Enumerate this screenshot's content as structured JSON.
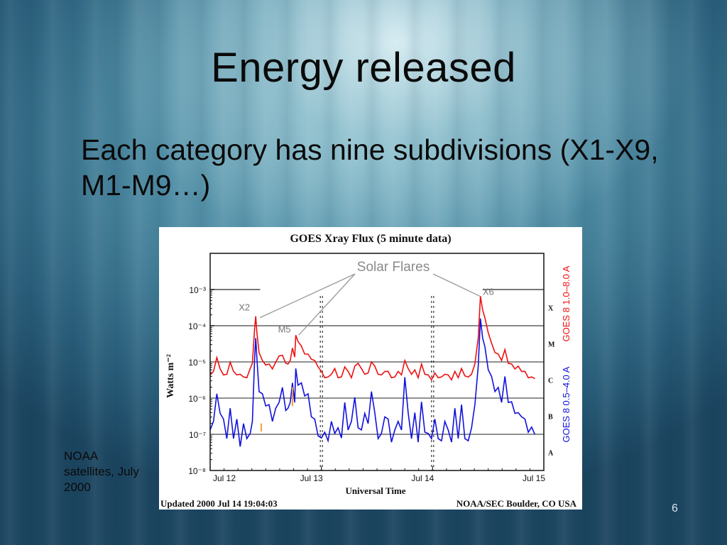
{
  "slide": {
    "title": "Energy released",
    "bullet": "Each category has nine subdivisions (X1-X9, M1-M9…)",
    "caption": "NOAA satellites, July 2000",
    "page_number": "6"
  },
  "chart_data": {
    "type": "line",
    "title": "GOES Xray Flux (5 minute data)",
    "xlabel": "Universal Time",
    "ylabel": "Watts m⁻²",
    "y_scale": "log",
    "ylim": [
      1e-08,
      0.01
    ],
    "xlim": [
      0,
      3
    ],
    "x_tick_labels": [
      "Jul 12",
      "Jul 13",
      "Jul 14",
      "Jul 15"
    ],
    "y_tick_labels": [
      "10⁻³",
      "10⁻⁴",
      "10⁻⁵",
      "10⁻⁶",
      "10⁻⁷",
      "10⁻⁸"
    ],
    "y_tick_values": [
      0.001,
      0.0001,
      1e-05,
      1e-06,
      1e-07,
      1e-08
    ],
    "class_labels": [
      "X",
      "M",
      "C",
      "B",
      "A"
    ],
    "class_thresholds": [
      0.0001,
      1e-05,
      1e-06,
      1e-07,
      1e-08
    ],
    "footer_left": "Updated 2000 Jul 14 19:04:03",
    "footer_right": "NOAA/SEC Boulder, CO USA",
    "annotation_label": "Solar Flares",
    "flares": [
      {
        "label": "X2",
        "x": 0.41,
        "y": 0.0002
      },
      {
        "label": "M5",
        "x": 0.77,
        "y": 5e-05
      },
      {
        "label": "X6",
        "x": 2.45,
        "y": 0.0006
      }
    ],
    "colors": {
      "long": "#ee1111",
      "short": "#1111dd",
      "orange": "#f0a030"
    },
    "series": [
      {
        "name": "GOES 8 1.0–8.0 A",
        "color": "#ee1111",
        "x": [
          0.0,
          0.03,
          0.06,
          0.09,
          0.12,
          0.15,
          0.18,
          0.21,
          0.24,
          0.27,
          0.3,
          0.33,
          0.36,
          0.38,
          0.4,
          0.41,
          0.42,
          0.44,
          0.47,
          0.5,
          0.53,
          0.56,
          0.59,
          0.62,
          0.65,
          0.68,
          0.7,
          0.72,
          0.74,
          0.76,
          0.77,
          0.79,
          0.82,
          0.85,
          0.88,
          0.91,
          0.94,
          0.97,
          1.0,
          1.03,
          1.06,
          1.09,
          1.12,
          1.15,
          1.18,
          1.21,
          1.24,
          1.27,
          1.3,
          1.33,
          1.36,
          1.39,
          1.42,
          1.45,
          1.48,
          1.51,
          1.54,
          1.57,
          1.6,
          1.63,
          1.66,
          1.69,
          1.72,
          1.75,
          1.78,
          1.81,
          1.84,
          1.87,
          1.9,
          1.93,
          1.96,
          1.99,
          2.02,
          2.05,
          2.08,
          2.11,
          2.14,
          2.17,
          2.2,
          2.23,
          2.26,
          2.29,
          2.32,
          2.35,
          2.38,
          2.41,
          2.43,
          2.45,
          2.47,
          2.5,
          2.53,
          2.56,
          2.59,
          2.62,
          2.65,
          2.68,
          2.71,
          2.74,
          2.77,
          2.8,
          2.83,
          2.86,
          2.89,
          2.92
        ],
        "values": [
          4e-06,
          6e-06,
          1.2e-05,
          7e-06,
          4e-06,
          5e-06,
          9e-06,
          6e-06,
          4e-06,
          5e-06,
          3.5e-06,
          4e-06,
          6e-06,
          1e-05,
          8e-05,
          0.0002,
          6e-05,
          2e-05,
          1e-05,
          9e-06,
          8e-06,
          7e-06,
          9e-06,
          1.6e-05,
          1.4e-05,
          1e-05,
          8e-06,
          1.2e-05,
          2.2e-05,
          1.5e-05,
          5e-05,
          4e-05,
          2.5e-05,
          1.8e-05,
          1.5e-05,
          1.3e-05,
          1e-05,
          8e-06,
          5e-06,
          4e-06,
          3.5e-06,
          5e-06,
          6e-06,
          4e-06,
          3.5e-06,
          8e-06,
          5e-06,
          4e-06,
          7e-06,
          1e-05,
          6e-06,
          5e-06,
          4.5e-06,
          1.1e-05,
          7e-06,
          5e-06,
          4e-06,
          6e-06,
          5e-06,
          4e-06,
          3.5e-06,
          6e-06,
          4e-06,
          1.2e-05,
          6e-06,
          5e-06,
          5.5e-06,
          4e-06,
          8e-06,
          5e-06,
          4e-06,
          3.5e-06,
          4.5e-06,
          4e-06,
          3.5e-06,
          5e-06,
          4e-06,
          3.5e-06,
          5e-06,
          4e-06,
          6e-06,
          4.5e-06,
          3.5e-06,
          5e-06,
          8e-06,
          5e-05,
          0.0006,
          0.0003,
          0.00015,
          7e-05,
          3e-05,
          2e-05,
          1.5e-05,
          1.2e-05,
          2e-05,
          1e-05,
          8e-06,
          7e-06,
          7e-06,
          6e-06,
          5e-06,
          4e-06,
          3.5e-06,
          3.8e-06
        ]
      },
      {
        "name": "GOES 8 0.5–4.0 A",
        "color": "#1111dd",
        "x": [
          0.0,
          0.03,
          0.06,
          0.09,
          0.12,
          0.15,
          0.18,
          0.21,
          0.24,
          0.27,
          0.3,
          0.33,
          0.36,
          0.38,
          0.4,
          0.41,
          0.42,
          0.44,
          0.47,
          0.5,
          0.53,
          0.56,
          0.59,
          0.62,
          0.65,
          0.68,
          0.7,
          0.72,
          0.74,
          0.76,
          0.77,
          0.79,
          0.82,
          0.85,
          0.88,
          0.91,
          0.94,
          0.97,
          1.0,
          1.03,
          1.06,
          1.09,
          1.12,
          1.15,
          1.18,
          1.21,
          1.24,
          1.27,
          1.3,
          1.33,
          1.36,
          1.39,
          1.42,
          1.45,
          1.48,
          1.51,
          1.54,
          1.57,
          1.6,
          1.63,
          1.66,
          1.69,
          1.72,
          1.75,
          1.78,
          1.81,
          1.84,
          1.87,
          1.9,
          1.93,
          1.96,
          1.99,
          2.02,
          2.05,
          2.08,
          2.11,
          2.14,
          2.17,
          2.2,
          2.23,
          2.26,
          2.29,
          2.32,
          2.35,
          2.38,
          2.41,
          2.43,
          2.45,
          2.47,
          2.5,
          2.53,
          2.56,
          2.59,
          2.62,
          2.65,
          2.68,
          2.71,
          2.74,
          2.77,
          2.8,
          2.83,
          2.86,
          2.89,
          2.92
        ],
        "values": [
          1e-07,
          3e-07,
          1e-06,
          5e-07,
          2e-07,
          1e-07,
          4e-07,
          1e-07,
          2e-07,
          6e-08,
          1.5e-07,
          1e-07,
          8e-08,
          3e-07,
          1e-05,
          6e-05,
          1e-05,
          2e-06,
          1e-06,
          8e-07,
          5e-07,
          3e-07,
          4e-07,
          1e-06,
          1.5e-06,
          6e-07,
          4e-07,
          1e-06,
          2e-06,
          1e-06,
          5e-06,
          3e-06,
          2e-06,
          1.5e-06,
          1e-06,
          4e-07,
          2e-07,
          1.2e-07,
          6e-08,
          1.5e-07,
          5e-08,
          3e-07,
          8e-08,
          2e-07,
          6e-08,
          1e-06,
          1e-07,
          3e-07,
          8e-07,
          2e-07,
          1e-07,
          5e-07,
          1.5e-07,
          2e-06,
          3e-07,
          1e-07,
          8e-08,
          4e-07,
          2e-07,
          8e-08,
          1e-07,
          3e-07,
          1e-07,
          5e-06,
          3e-07,
          1e-07,
          3e-07,
          8e-08,
          6e-07,
          1.5e-07,
          8e-08,
          1e-07,
          2e-07,
          1e-07,
          5e-08,
          3e-07,
          1e-07,
          8e-08,
          4e-07,
          1e-07,
          5e-07,
          1e-07,
          5e-08,
          2e-07,
          5e-07,
          1e-05,
          0.00012,
          6e-05,
          2e-05,
          8e-06,
          3e-06,
          2e-06,
          1.5e-06,
          1e-06,
          3e-06,
          1e-06,
          6e-07,
          5e-07,
          3e-07,
          4e-07,
          2e-07,
          1.5e-07,
          1.2e-07,
          1.3e-07
        ]
      }
    ]
  }
}
